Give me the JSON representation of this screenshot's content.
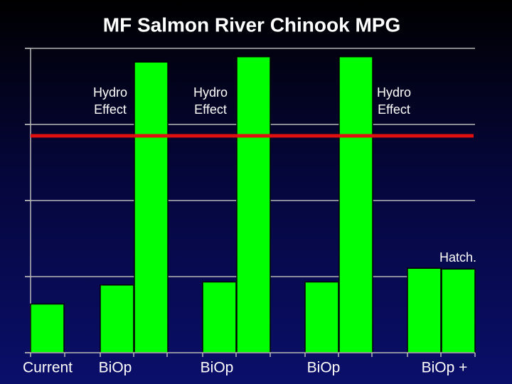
{
  "chart_data": {
    "type": "bar",
    "title": "MF Salmon River Chinook MPG",
    "groups": [
      {
        "label": "Current",
        "values": [
          0.64
        ]
      },
      {
        "label": "BiOp",
        "values": [
          0.89,
          3.82
        ],
        "annotation": "Hydro Effect"
      },
      {
        "label": "BiOp",
        "values": [
          0.93,
          3.89
        ],
        "annotation": "Hydro Effect"
      },
      {
        "label": "BiOp",
        "values": [
          0.93,
          3.89
        ],
        "annotation": "Hydro Effect"
      },
      {
        "label": "BiOp +",
        "values": [
          1.11,
          1.1
        ],
        "annotation": "Hatch."
      }
    ],
    "color": "#00ff00",
    "threshold": 2.85,
    "threshold_color": "#e01010",
    "ylim": [
      0,
      4
    ],
    "yticks": [
      0,
      1,
      2,
      3,
      4
    ],
    "grid": true
  }
}
